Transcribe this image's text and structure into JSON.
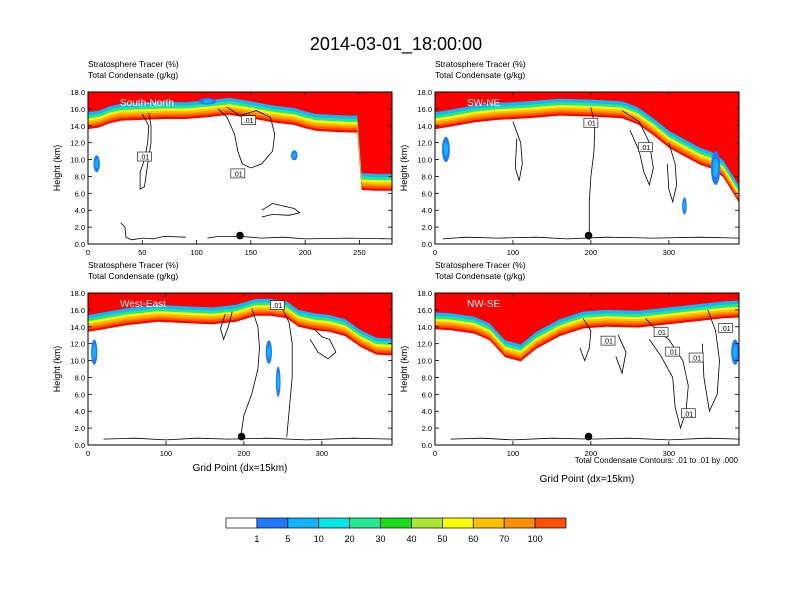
{
  "title": "2014-03-01_18:00:00",
  "colors": {
    "levels": [
      "#ffffff",
      "#1f78ff",
      "#10b4ff",
      "#00e8e8",
      "#20e890",
      "#18e018",
      "#a8e830",
      "#ffff00",
      "#ffc000",
      "#ff9000",
      "#ff5000",
      "#ff0000"
    ],
    "contour": "#000000"
  },
  "chart_data": [
    {
      "type": "heatmap",
      "label": "South-North",
      "title_lines": [
        "Stratosphere Tracer   (%)",
        "Total Condensate   (g/kg)"
      ],
      "ylabel": "Height (km)",
      "xlabel": "",
      "xlim": [
        0,
        280
      ],
      "ylim": [
        0,
        18
      ],
      "xticks": [
        0,
        50,
        100,
        150,
        200,
        250
      ],
      "yticks": [
        "0.0",
        "2.0",
        "4.0",
        "6.0",
        "8.0",
        "10.0",
        "12.0",
        "14.0",
        "16.0",
        "18.0"
      ],
      "tropopause": [
        [
          0,
          15.2
        ],
        [
          10,
          15.4
        ],
        [
          20,
          15.9
        ],
        [
          30,
          16.2
        ],
        [
          50,
          16.3
        ],
        [
          70,
          16.4
        ],
        [
          90,
          16.4
        ],
        [
          110,
          16.6
        ],
        [
          130,
          16.9
        ],
        [
          150,
          16.5
        ],
        [
          170,
          16.0
        ],
        [
          190,
          15.7
        ],
        [
          200,
          15.3
        ],
        [
          210,
          15.0
        ],
        [
          225,
          14.9
        ],
        [
          240,
          14.8
        ],
        [
          248,
          14.8
        ],
        [
          252,
          8.0
        ],
        [
          265,
          7.9
        ],
        [
          280,
          7.9
        ]
      ],
      "tracer_blobs": [
        [
          8,
          9.5,
          3,
          1.0
        ],
        [
          110,
          16.9,
          8,
          0.4
        ],
        [
          190,
          10.5,
          3,
          0.6
        ]
      ],
      "site": [
        140,
        1.0
      ],
      "contour_labels": [
        {
          "x": 148,
          "y": 14.6,
          "t": ".01"
        },
        {
          "x": 52,
          "y": 10.3,
          "t": ".01"
        },
        {
          "x": 138,
          "y": 8.3,
          "t": ".01"
        }
      ],
      "contours": [
        [
          [
            50,
            15.4
          ],
          [
            56,
            14.0
          ],
          [
            55,
            12.0
          ],
          [
            52,
            10.0
          ],
          [
            48,
            8.5
          ],
          [
            48,
            6.5
          ],
          [
            52,
            6.8
          ],
          [
            55,
            9.5
          ],
          [
            58,
            12.0
          ],
          [
            58,
            14.0
          ],
          [
            56,
            15.5
          ]
        ],
        [
          [
            120,
            16.0
          ],
          [
            128,
            15.0
          ],
          [
            135,
            13.0
          ],
          [
            138,
            11.0
          ],
          [
            142,
            9.5
          ],
          [
            150,
            9.0
          ],
          [
            160,
            9.5
          ],
          [
            170,
            11.0
          ],
          [
            172,
            13.0
          ],
          [
            168,
            15.0
          ],
          [
            155,
            15.8
          ],
          [
            140,
            15.2
          ],
          [
            128,
            16.2
          ]
        ],
        [
          [
            160,
            4.0
          ],
          [
            170,
            4.8
          ],
          [
            180,
            4.5
          ],
          [
            190,
            4.2
          ],
          [
            195,
            3.7
          ],
          [
            185,
            3.4
          ],
          [
            170,
            3.5
          ],
          [
            160,
            3.2
          ]
        ],
        [
          [
            30,
            2.5
          ],
          [
            34,
            2.0
          ],
          [
            35,
            0.8
          ],
          [
            40,
            0.5
          ],
          [
            50,
            0.7
          ],
          [
            60,
            0.6
          ],
          [
            70,
            0.9
          ],
          [
            90,
            0.8
          ]
        ],
        [
          [
            110,
            0.7
          ],
          [
            120,
            0.9
          ],
          [
            140,
            0.9
          ],
          [
            160,
            0.7
          ],
          [
            180,
            0.8
          ],
          [
            200,
            0.6
          ],
          [
            240,
            0.7
          ],
          [
            280,
            0.6
          ]
        ]
      ]
    },
    {
      "type": "heatmap",
      "label": "SW-NE",
      "title_lines": [
        "Stratosphere Tracer   (%)",
        "Total Condensate   (g/kg)"
      ],
      "ylabel": "Height (km)",
      "xlabel": "",
      "xlim": [
        0,
        390
      ],
      "ylim": [
        0,
        18
      ],
      "xticks": [
        0,
        100,
        200,
        300
      ],
      "yticks": [
        "0.0",
        "2.0",
        "4.0",
        "6.0",
        "8.0",
        "10.0",
        "12.0",
        "14.0",
        "16.0",
        "18.0"
      ],
      "tropopause": [
        [
          0,
          15.2
        ],
        [
          20,
          15.5
        ],
        [
          50,
          16.0
        ],
        [
          80,
          16.3
        ],
        [
          120,
          16.5
        ],
        [
          160,
          16.8
        ],
        [
          200,
          16.7
        ],
        [
          240,
          16.5
        ],
        [
          260,
          15.8
        ],
        [
          280,
          14.5
        ],
        [
          300,
          13.0
        ],
        [
          320,
          12.0
        ],
        [
          340,
          11.0
        ],
        [
          355,
          10.5
        ],
        [
          370,
          9.5
        ],
        [
          380,
          8.0
        ],
        [
          390,
          6.5
        ]
      ],
      "tracer_blobs": [
        [
          14,
          11.2,
          5,
          1.5
        ],
        [
          360,
          9.0,
          6,
          2.0
        ],
        [
          320,
          4.5,
          3,
          1.0
        ]
      ],
      "site": [
        197,
        1.0
      ],
      "contour_labels": [
        {
          "x": 200,
          "y": 14.3,
          "t": ".01"
        },
        {
          "x": 270,
          "y": 11.4,
          "t": ".01"
        }
      ],
      "contours": [
        [
          [
            200,
            16.2
          ],
          [
            205,
            14.0
          ],
          [
            204,
            11.0
          ],
          [
            200,
            8.0
          ],
          [
            198,
            5.0
          ],
          [
            198,
            0.5
          ]
        ],
        [
          [
            100,
            14.5
          ],
          [
            110,
            12.0
          ],
          [
            112,
            9.5
          ],
          [
            108,
            7.5
          ],
          [
            103,
            9.0
          ],
          [
            105,
            12.5
          ]
        ],
        [
          [
            240,
            15.8
          ],
          [
            262,
            14.5
          ],
          [
            275,
            12.0
          ],
          [
            280,
            9.0
          ],
          [
            275,
            7.0
          ],
          [
            268,
            8.5
          ],
          [
            262,
            11.0
          ],
          [
            250,
            13.5
          ]
        ],
        [
          [
            300,
            12.0
          ],
          [
            308,
            9.5
          ],
          [
            310,
            7.0
          ],
          [
            305,
            5.0
          ],
          [
            300,
            6.5
          ],
          [
            298,
            9.5
          ]
        ],
        [
          [
            10,
            0.6
          ],
          [
            40,
            0.8
          ],
          [
            80,
            0.7
          ],
          [
            130,
            0.8
          ],
          [
            170,
            0.6
          ],
          [
            220,
            0.8
          ],
          [
            280,
            0.7
          ],
          [
            340,
            0.8
          ],
          [
            390,
            0.7
          ]
        ]
      ]
    },
    {
      "type": "heatmap",
      "label": "West-East",
      "title_lines": [
        "Stratosphere Tracer   (%)",
        "Total Condensate   (g/kg)"
      ],
      "ylabel": "Height (km)",
      "xlabel": "Grid Point (dx=15km)",
      "xlim": [
        0,
        390
      ],
      "ylim": [
        0,
        18
      ],
      "xticks": [
        0,
        100,
        200,
        300
      ],
      "yticks": [
        "0.0",
        "2.0",
        "4.0",
        "6.0",
        "8.0",
        "10.0",
        "12.0",
        "14.0",
        "16.0",
        "18.0"
      ],
      "tropopause": [
        [
          0,
          15.0
        ],
        [
          20,
          15.3
        ],
        [
          50,
          15.8
        ],
        [
          90,
          16.2
        ],
        [
          130,
          16.0
        ],
        [
          160,
          15.9
        ],
        [
          190,
          16.2
        ],
        [
          215,
          16.9
        ],
        [
          235,
          16.9
        ],
        [
          255,
          16.6
        ],
        [
          270,
          15.6
        ],
        [
          290,
          15.2
        ],
        [
          310,
          15.0
        ],
        [
          330,
          14.5
        ],
        [
          350,
          13.2
        ],
        [
          370,
          12.3
        ],
        [
          390,
          12.2
        ]
      ],
      "tracer_blobs": [
        [
          8,
          11.0,
          4,
          1.5
        ],
        [
          232,
          11.0,
          4,
          1.4
        ],
        [
          244,
          7.5,
          3,
          1.8
        ]
      ],
      "site": [
        197,
        1.0
      ],
      "contour_labels": [
        {
          "x": 243,
          "y": 16.5,
          "t": ".01"
        }
      ],
      "contours": [
        [
          [
            210,
            16.2
          ],
          [
            218,
            14.0
          ],
          [
            220,
            11.5
          ],
          [
            218,
            9.0
          ],
          [
            210,
            6.0
          ],
          [
            200,
            3.5
          ],
          [
            196,
            1.0
          ]
        ],
        [
          [
            250,
            16.0
          ],
          [
            258,
            14.5
          ],
          [
            262,
            12.0
          ],
          [
            262,
            8.0
          ],
          [
            258,
            4.0
          ],
          [
            255,
            1.0
          ]
        ],
        [
          [
            185,
            15.8
          ],
          [
            180,
            14.0
          ],
          [
            174,
            12.5
          ],
          [
            170,
            13.8
          ],
          [
            176,
            15.5
          ]
        ],
        [
          [
            290,
            13.8
          ],
          [
            300,
            12.8
          ],
          [
            310,
            12.5
          ],
          [
            318,
            11.0
          ],
          [
            308,
            10.2
          ],
          [
            295,
            11.0
          ],
          [
            285,
            12.5
          ]
        ],
        [
          [
            20,
            0.7
          ],
          [
            60,
            0.8
          ],
          [
            100,
            0.6
          ],
          [
            140,
            0.8
          ],
          [
            180,
            0.7
          ],
          [
            230,
            0.8
          ],
          [
            280,
            0.6
          ],
          [
            340,
            0.8
          ],
          [
            390,
            0.7
          ]
        ]
      ]
    },
    {
      "type": "heatmap",
      "label": "NW-SE",
      "title_lines": [
        "Stratosphere Tracer   (%)",
        "Total Condensate   (g/kg)"
      ],
      "ylabel": "Height (km)",
      "xlabel": "Grid Point (dx=15km)",
      "xlim": [
        0,
        390
      ],
      "ylim": [
        0,
        18
      ],
      "xticks": [
        0,
        100,
        200,
        300
      ],
      "yticks": [
        "0.0",
        "2.0",
        "4.0",
        "6.0",
        "8.0",
        "10.0",
        "12.0",
        "14.0",
        "16.0",
        "18.0"
      ],
      "tropopause": [
        [
          0,
          15.3
        ],
        [
          20,
          15.2
        ],
        [
          50,
          14.8
        ],
        [
          70,
          14.0
        ],
        [
          90,
          12.0
        ],
        [
          110,
          11.5
        ],
        [
          130,
          13.0
        ],
        [
          160,
          14.5
        ],
        [
          190,
          15.4
        ],
        [
          220,
          15.6
        ],
        [
          260,
          15.5
        ],
        [
          300,
          15.9
        ],
        [
          340,
          16.3
        ],
        [
          370,
          16.6
        ],
        [
          390,
          16.7
        ]
      ],
      "tracer_blobs": [
        [
          385,
          11.0,
          5,
          1.5
        ]
      ],
      "site": [
        197,
        1.0
      ],
      "contour_labels": [
        {
          "x": 290,
          "y": 13.3,
          "t": ".01"
        },
        {
          "x": 222,
          "y": 12.3,
          "t": ".01"
        },
        {
          "x": 305,
          "y": 11.0,
          "t": ".01"
        },
        {
          "x": 335,
          "y": 10.3,
          "t": ".01"
        },
        {
          "x": 325,
          "y": 3.7,
          "t": ".01"
        },
        {
          "x": 373,
          "y": 13.8,
          "t": ".01"
        }
      ],
      "contours": [
        [
          [
            190,
            15.0
          ],
          [
            200,
            13.5
          ],
          [
            198,
            11.5
          ],
          [
            192,
            10.0
          ],
          [
            186,
            11.5
          ]
        ],
        [
          [
            270,
            15.0
          ],
          [
            285,
            13.5
          ],
          [
            300,
            12.5
          ],
          [
            318,
            10.0
          ],
          [
            325,
            7.0
          ],
          [
            322,
            4.0
          ],
          [
            315,
            2.0
          ],
          [
            308,
            4.5
          ],
          [
            305,
            8.0
          ],
          [
            290,
            10.5
          ],
          [
            275,
            12.5
          ]
        ],
        [
          [
            350,
            16.0
          ],
          [
            360,
            13.5
          ],
          [
            365,
            10.0
          ],
          [
            362,
            6.0
          ],
          [
            352,
            4.0
          ],
          [
            345,
            8.0
          ],
          [
            343,
            12.0
          ]
        ],
        [
          [
            235,
            13.0
          ],
          [
            245,
            11.0
          ],
          [
            240,
            8.5
          ],
          [
            232,
            10.5
          ]
        ],
        [
          [
            20,
            0.7
          ],
          [
            60,
            0.8
          ],
          [
            100,
            0.6
          ],
          [
            150,
            0.8
          ],
          [
            200,
            0.7
          ],
          [
            250,
            0.8
          ],
          [
            300,
            0.6
          ],
          [
            350,
            0.8
          ],
          [
            390,
            0.7
          ]
        ]
      ]
    }
  ],
  "footnote": "Total Condensate Contours: .01 to .01 by .000",
  "colorbar": {
    "labels": [
      "1",
      "5",
      "10",
      "20",
      "30",
      "40",
      "50",
      "60",
      "70",
      "100"
    ]
  }
}
